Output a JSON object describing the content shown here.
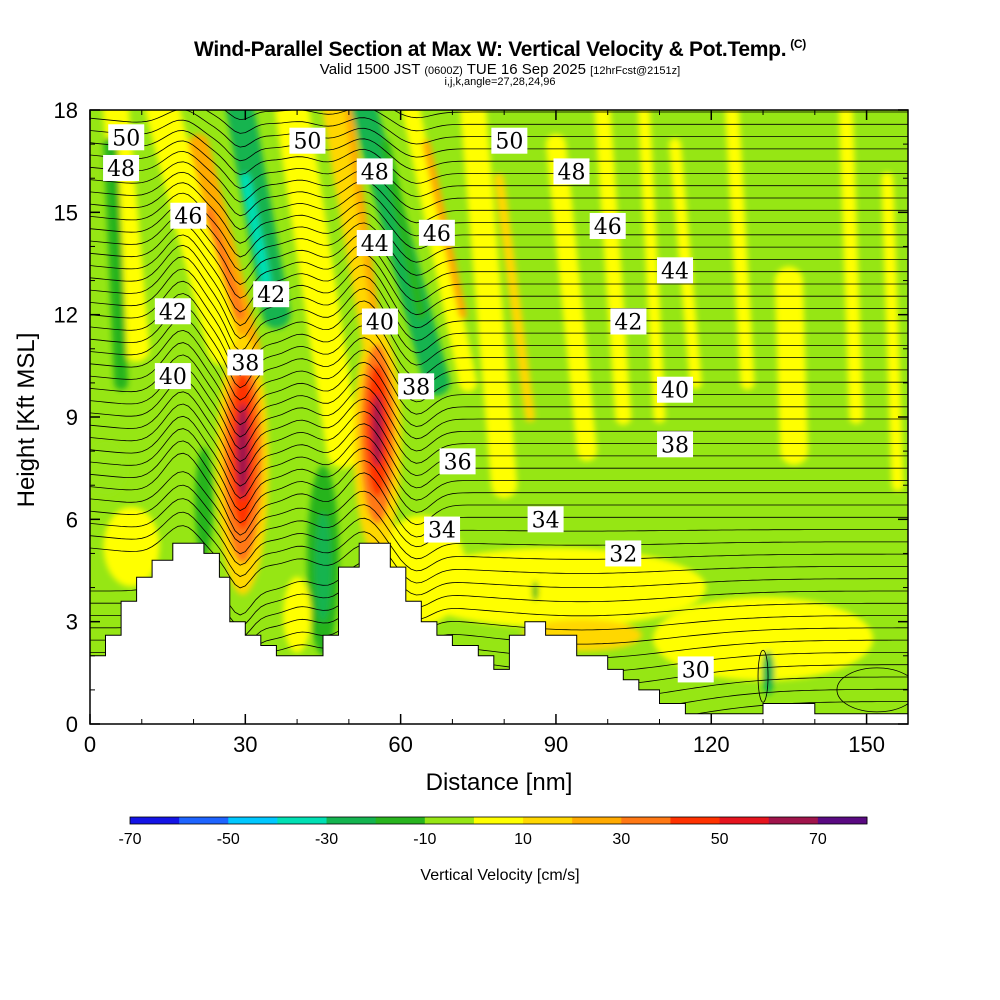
{
  "chart_data": {
    "type": "heatmap",
    "title": "Wind-Parallel Section at Max W: Vertical Velocity & Pot.Temp.",
    "copyright": "(C)",
    "subtitle_pre": "Valid 1500 JST ",
    "subtitle_utc": "(0600Z)",
    "subtitle_date": " TUE 16 Sep 2025 ",
    "subtitle_fcst": "[12hrFcst@2151z]",
    "params": "i,j,k,angle=27,28,24,96",
    "xlabel": "Distance [nm]",
    "ylabel": "Height [Kft MSL]",
    "xlim": [
      0,
      158
    ],
    "ylim": [
      0,
      18
    ],
    "x_ticks": [
      "0",
      "30",
      "60",
      "90",
      "120",
      "150"
    ],
    "y_ticks": [
      "0",
      "3",
      "6",
      "9",
      "12",
      "15",
      "18"
    ],
    "colorbar": {
      "label": "Vertical Velocity [cm/s]",
      "tick_labels": [
        "-70",
        "-50",
        "-30",
        "-10",
        "10",
        "30",
        "50",
        "70"
      ],
      "colors": [
        "#1414e6",
        "#1e64ff",
        "#00c8ff",
        "#00e0b4",
        "#14b450",
        "#28b41e",
        "#96e614",
        "#ffff00",
        "#ffd700",
        "#ffaa00",
        "#ff7814",
        "#ff3200",
        "#e6141e",
        "#a0144b",
        "#5a0a82"
      ]
    },
    "theta_labels": [
      {
        "text": "50",
        "x": 7,
        "y": 17.2
      },
      {
        "text": "50",
        "x": 42,
        "y": 17.1
      },
      {
        "text": "50",
        "x": 81,
        "y": 17.1
      },
      {
        "text": "48",
        "x": 6,
        "y": 16.3
      },
      {
        "text": "48",
        "x": 55,
        "y": 16.2
      },
      {
        "text": "48",
        "x": 93,
        "y": 16.2
      },
      {
        "text": "46",
        "x": 19,
        "y": 14.9
      },
      {
        "text": "46",
        "x": 67,
        "y": 14.4
      },
      {
        "text": "46",
        "x": 100,
        "y": 14.6
      },
      {
        "text": "44",
        "x": 55,
        "y": 14.1
      },
      {
        "text": "44",
        "x": 113,
        "y": 13.3
      },
      {
        "text": "42",
        "x": 16,
        "y": 12.1
      },
      {
        "text": "42",
        "x": 35,
        "y": 12.6
      },
      {
        "text": "42",
        "x": 104,
        "y": 11.8
      },
      {
        "text": "40",
        "x": 16,
        "y": 10.2
      },
      {
        "text": "40",
        "x": 56,
        "y": 11.8
      },
      {
        "text": "40",
        "x": 113,
        "y": 9.8
      },
      {
        "text": "38",
        "x": 30,
        "y": 10.6
      },
      {
        "text": "38",
        "x": 63,
        "y": 9.9
      },
      {
        "text": "38",
        "x": 113,
        "y": 8.2
      },
      {
        "text": "36",
        "x": 71,
        "y": 7.7
      },
      {
        "text": "34",
        "x": 68,
        "y": 5.7
      },
      {
        "text": "34",
        "x": 88,
        "y": 6.0
      },
      {
        "text": "32",
        "x": 103,
        "y": 5.0
      },
      {
        "text": "30",
        "x": 117,
        "y": 1.6
      }
    ],
    "terrain": [
      [
        0,
        2.0
      ],
      [
        3,
        2.0
      ],
      [
        3,
        2.6
      ],
      [
        6,
        2.6
      ],
      [
        6,
        3.6
      ],
      [
        9,
        3.6
      ],
      [
        9,
        4.3
      ],
      [
        12,
        4.3
      ],
      [
        12,
        4.8
      ],
      [
        16,
        4.8
      ],
      [
        16,
        5.3
      ],
      [
        22,
        5.3
      ],
      [
        22,
        5.0
      ],
      [
        25,
        5.0
      ],
      [
        25,
        4.3
      ],
      [
        27,
        4.3
      ],
      [
        27,
        3.0
      ],
      [
        30,
        3.0
      ],
      [
        30,
        2.6
      ],
      [
        33,
        2.6
      ],
      [
        33,
        2.3
      ],
      [
        36,
        2.3
      ],
      [
        36,
        2.0
      ],
      [
        40,
        2.0
      ],
      [
        40,
        2.0
      ],
      [
        45,
        2.0
      ],
      [
        45,
        2.6
      ],
      [
        48,
        2.6
      ],
      [
        48,
        4.6
      ],
      [
        52,
        4.6
      ],
      [
        52,
        5.3
      ],
      [
        58,
        5.3
      ],
      [
        58,
        4.6
      ],
      [
        61,
        4.6
      ],
      [
        61,
        3.6
      ],
      [
        64,
        3.6
      ],
      [
        64,
        3.0
      ],
      [
        67,
        3.0
      ],
      [
        67,
        2.6
      ],
      [
        70,
        2.6
      ],
      [
        70,
        2.3
      ],
      [
        75,
        2.3
      ],
      [
        75,
        2.0
      ],
      [
        78,
        2.0
      ],
      [
        78,
        1.6
      ],
      [
        81,
        1.6
      ],
      [
        81,
        2.6
      ],
      [
        84,
        2.6
      ],
      [
        84,
        3.0
      ],
      [
        88,
        3.0
      ],
      [
        88,
        2.6
      ],
      [
        94,
        2.6
      ],
      [
        94,
        2.0
      ],
      [
        100,
        2.0
      ],
      [
        100,
        1.6
      ],
      [
        103,
        1.6
      ],
      [
        103,
        1.3
      ],
      [
        106,
        1.3
      ],
      [
        106,
        1.0
      ],
      [
        110,
        1.0
      ],
      [
        110,
        0.6
      ],
      [
        115,
        0.6
      ],
      [
        115,
        0.3
      ],
      [
        120,
        0.3
      ],
      [
        120,
        0.3
      ],
      [
        130,
        0.3
      ],
      [
        130,
        0.6
      ],
      [
        140,
        0.6
      ],
      [
        140,
        0.3
      ],
      [
        158,
        0.3
      ]
    ]
  }
}
